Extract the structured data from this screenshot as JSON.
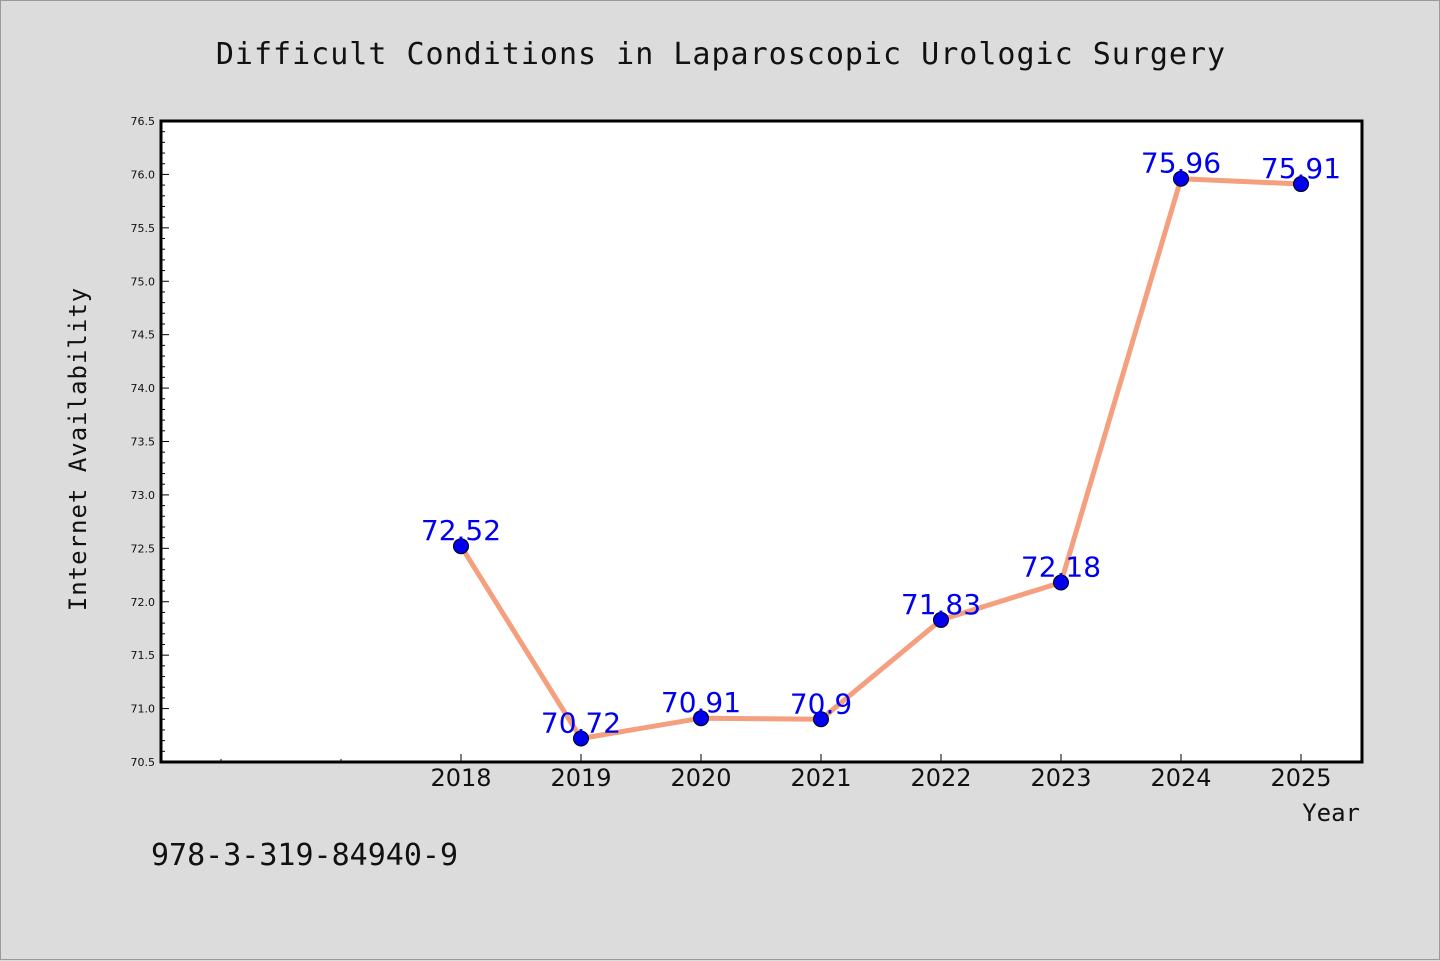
{
  "chart_data": {
    "type": "line",
    "title": "Difficult Conditions in Laparoscopic Urologic Surgery",
    "xlabel": "Year",
    "ylabel": "Internet Availability",
    "categories": [
      "2018",
      "2019",
      "2020",
      "2021",
      "2022",
      "2023",
      "2024",
      "2025"
    ],
    "series": [
      {
        "values": [
          72.52,
          70.72,
          70.91,
          70.9,
          71.83,
          72.18,
          75.96,
          75.91
        ],
        "data_labels": [
          "72.52",
          "70.72",
          "70.91",
          "70.9",
          "71.83",
          "72.18",
          "75.96",
          "75.91"
        ],
        "line_color": "#f4a07e",
        "marker_color": "#0000ee"
      }
    ],
    "ylim": [
      70.5,
      76.5
    ],
    "yticks": [
      "70.5",
      "71.0",
      "71.5",
      "72.0",
      "72.5",
      "73.0",
      "73.5",
      "74.0",
      "74.5",
      "75.0",
      "75.5",
      "76.0",
      "76.5"
    ],
    "grid": false,
    "legend": "none"
  },
  "footer": {
    "isbn": "978-3-319-84940-9"
  },
  "colors": {
    "background": "#dcdcdc",
    "plot_area": "#ffffff",
    "axis": "#000000"
  }
}
